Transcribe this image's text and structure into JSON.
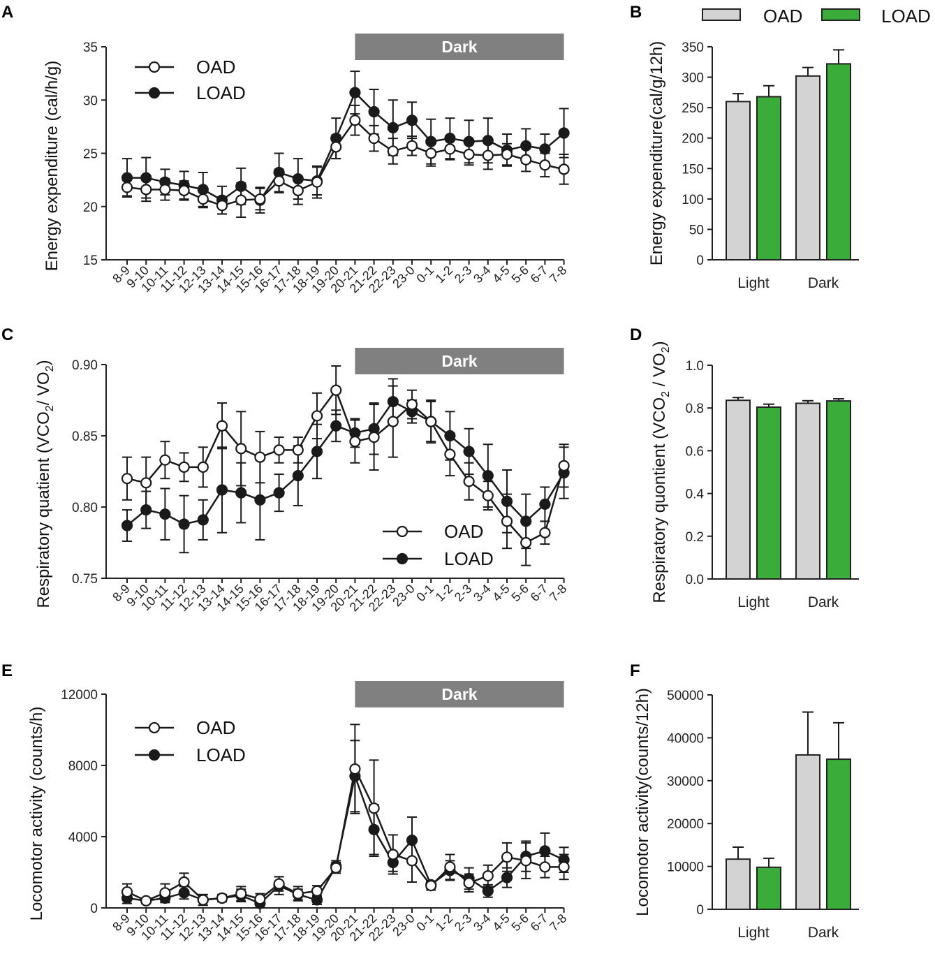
{
  "legend": {
    "oad": "OAD",
    "load": "LOAD"
  },
  "colors": {
    "oad_fill": "#d3d3d3",
    "load_fill": "#3aac3a",
    "dark_band": "#808080",
    "line": "#1a1a1a"
  },
  "chart_data": [
    {
      "panel": "A",
      "type": "line",
      "ylabel": "Energy expenditure  (cal/h/g)",
      "ylim": [
        15,
        35
      ],
      "yticks": [
        15,
        20,
        25,
        30,
        35
      ],
      "band_label": "Dark",
      "band_range": [
        "20-21",
        "7-8"
      ],
      "legend_position": "top-left",
      "categories": [
        "8-9",
        "9-10",
        "10-11",
        "11-12",
        "12-13",
        "13-14",
        "14-15",
        "15-16",
        "16-17",
        "17-18",
        "18-19",
        "19-20",
        "20-21",
        "21-22",
        "22-23",
        "23-0",
        "0-1",
        "1-2",
        "2-3",
        "3-4",
        "4-5",
        "5-6",
        "6-7",
        "7-8"
      ],
      "series": [
        {
          "name": "OAD",
          "values": [
            21.8,
            21.6,
            21.6,
            21.5,
            20.7,
            20.1,
            20.6,
            20.7,
            22.4,
            21.5,
            22.3,
            25.6,
            28.1,
            26.4,
            25.2,
            25.7,
            25.0,
            25.4,
            24.9,
            24.8,
            24.9,
            24.4,
            23.9,
            23.5
          ],
          "errors": [
            0.8,
            1.1,
            1.0,
            0.9,
            0.8,
            0.8,
            1.6,
            1.0,
            1.1,
            1.3,
            1.5,
            1.1,
            1.4,
            1.2,
            1.2,
            0.9,
            1.2,
            1.0,
            1.0,
            1.3,
            1.0,
            1.1,
            1.1,
            1.4
          ]
        },
        {
          "name": "LOAD",
          "values": [
            22.7,
            22.7,
            22.3,
            22.0,
            21.6,
            20.6,
            21.9,
            20.6,
            23.2,
            22.6,
            22.4,
            26.4,
            30.7,
            28.9,
            27.4,
            28.1,
            26.1,
            26.4,
            26.1,
            26.2,
            25.3,
            25.7,
            25.4,
            26.9
          ],
          "errors": [
            1.8,
            1.9,
            1.2,
            1.3,
            1.6,
            1.3,
            1.7,
            1.2,
            1.8,
            1.9,
            1.3,
            1.9,
            2.0,
            2.1,
            2.6,
            1.7,
            2.1,
            1.9,
            2.0,
            2.1,
            1.5,
            1.6,
            1.4,
            2.3
          ]
        }
      ]
    },
    {
      "panel": "B",
      "type": "bar",
      "ylabel": "Energy expenditure(cal/g/12h)",
      "ylim": [
        0,
        350
      ],
      "yticks": [
        0,
        50,
        100,
        150,
        200,
        250,
        300,
        350
      ],
      "categories": [
        "Light",
        "Dark"
      ],
      "series": [
        {
          "name": "OAD",
          "values": [
            260,
            302
          ],
          "errors": [
            13,
            14
          ]
        },
        {
          "name": "LOAD",
          "values": [
            268,
            322
          ],
          "errors": [
            18,
            23
          ]
        }
      ]
    },
    {
      "panel": "C",
      "type": "line",
      "ylabel_main": "Respiratory quatient  (VCO",
      "ylabel_mid": "/ VO",
      "ylabel_end": ")",
      "ylabel_sub": "2",
      "ylim": [
        0.75,
        0.9
      ],
      "yticks": [
        "0.75",
        "0.80",
        "0.85",
        "0.90"
      ],
      "band_label": "Dark",
      "band_range": [
        "20-21",
        "7-8"
      ],
      "legend_position": "bottom-center",
      "categories": [
        "8-9",
        "9-10",
        "10-11",
        "11-12",
        "12-13",
        "13-14",
        "14-15",
        "15-16",
        "16-17",
        "17-18",
        "18-19",
        "19-20",
        "20-21",
        "21-22",
        "22-23",
        "23-0",
        "0-1",
        "1-2",
        "2-3",
        "3-4",
        "4-5",
        "5-6",
        "6-7",
        "7-8"
      ],
      "series": [
        {
          "name": "OAD",
          "values": [
            0.82,
            0.817,
            0.833,
            0.828,
            0.828,
            0.857,
            0.841,
            0.835,
            0.84,
            0.84,
            0.864,
            0.882,
            0.846,
            0.849,
            0.86,
            0.872,
            0.86,
            0.837,
            0.818,
            0.808,
            0.79,
            0.775,
            0.782,
            0.829
          ],
          "errors": [
            0.015,
            0.018,
            0.013,
            0.01,
            0.014,
            0.016,
            0.026,
            0.018,
            0.009,
            0.009,
            0.016,
            0.017,
            0.015,
            0.023,
            0.025,
            0.01,
            0.015,
            0.015,
            0.013,
            0.01,
            0.019,
            0.016,
            0.008,
            0.015
          ]
        },
        {
          "name": "LOAD",
          "values": [
            0.787,
            0.798,
            0.795,
            0.788,
            0.791,
            0.812,
            0.81,
            0.805,
            0.81,
            0.822,
            0.839,
            0.857,
            0.852,
            0.855,
            0.874,
            0.867,
            0.86,
            0.85,
            0.839,
            0.822,
            0.804,
            0.79,
            0.802,
            0.824
          ],
          "errors": [
            0.011,
            0.013,
            0.018,
            0.02,
            0.014,
            0.03,
            0.021,
            0.028,
            0.013,
            0.021,
            0.019,
            0.011,
            0.01,
            0.018,
            0.016,
            0.008,
            0.014,
            0.017,
            0.016,
            0.022,
            0.022,
            0.019,
            0.012,
            0.018
          ]
        }
      ]
    },
    {
      "panel": "D",
      "type": "bar",
      "ylabel_main": "Respiratory quontient (VCO",
      "ylabel_mid": " / VO",
      "ylabel_end": ")",
      "ylabel_sub": "2",
      "ylim": [
        0,
        1.0
      ],
      "yticks": [
        "0.0",
        "0.2",
        "0.4",
        "0.6",
        "0.8",
        "1.0"
      ],
      "categories": [
        "Light",
        "Dark"
      ],
      "series": [
        {
          "name": "OAD",
          "values": [
            0.836,
            0.822
          ],
          "errors": [
            0.013,
            0.012
          ]
        },
        {
          "name": "LOAD",
          "values": [
            0.804,
            0.833
          ],
          "errors": [
            0.014,
            0.01
          ]
        }
      ]
    },
    {
      "panel": "E",
      "type": "line",
      "ylabel": "Locomotor activity (counts/h)",
      "ylim": [
        0,
        12000
      ],
      "yticks": [
        0,
        4000,
        8000,
        12000
      ],
      "band_label": "Dark",
      "band_range": [
        "20-21",
        "7-8"
      ],
      "legend_position": "top-left",
      "categories": [
        "8-9",
        "9-10",
        "10-11",
        "11-12",
        "12-13",
        "13-14",
        "14-15",
        "15-16",
        "16-17",
        "17-18",
        "18-19",
        "19-20",
        "20-21",
        "21-22",
        "22-23",
        "23-0",
        "0-1",
        "1-2",
        "2-3",
        "3-4",
        "4-5",
        "5-6",
        "6-7",
        "7-8"
      ],
      "series": [
        {
          "name": "OAD",
          "values": [
            900,
            400,
            850,
            1450,
            450,
            550,
            800,
            500,
            1350,
            800,
            950,
            2250,
            7800,
            5600,
            3000,
            2650,
            1250,
            2300,
            1400,
            1800,
            2850,
            2650,
            2300,
            2300
          ],
          "errors": [
            450,
            150,
            500,
            500,
            300,
            200,
            400,
            300,
            400,
            400,
            300,
            300,
            2500,
            2700,
            1100,
            1200,
            250,
            700,
            500,
            600,
            800,
            1000,
            600,
            700
          ]
        },
        {
          "name": "LOAD",
          "values": [
            550,
            400,
            550,
            850,
            450,
            550,
            700,
            250,
            1250,
            750,
            450,
            2350,
            7400,
            4400,
            2550,
            3800,
            1300,
            2100,
            1650,
            950,
            1700,
            2900,
            3200,
            2700
          ],
          "errors": [
            300,
            150,
            250,
            350,
            300,
            200,
            350,
            150,
            500,
            300,
            250,
            300,
            2000,
            1400,
            500,
            1300,
            200,
            550,
            600,
            350,
            550,
            850,
            1000,
            700
          ]
        }
      ]
    },
    {
      "panel": "F",
      "type": "bar",
      "ylabel": "Locomotor activity(counts/12h)",
      "ylim": [
        0,
        50000
      ],
      "yticks": [
        0,
        10000,
        20000,
        30000,
        40000,
        50000
      ],
      "categories": [
        "Light",
        "Dark"
      ],
      "series": [
        {
          "name": "OAD",
          "values": [
            11700,
            36000
          ],
          "errors": [
            2800,
            10000
          ]
        },
        {
          "name": "LOAD",
          "values": [
            9800,
            35000
          ],
          "errors": [
            2100,
            8500
          ]
        }
      ]
    }
  ]
}
